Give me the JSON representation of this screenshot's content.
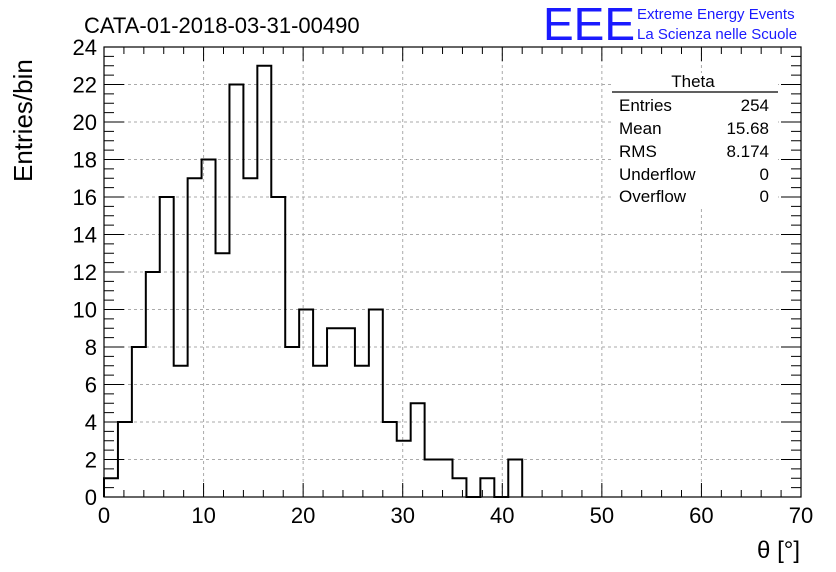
{
  "header": {
    "run_title": "CATA-01-2018-03-31-00490",
    "logo_text": "EEE",
    "logo_line1": "Extreme Energy Events",
    "logo_line2": "La Scienza nelle Scuole",
    "logo_color": "#1a1aff"
  },
  "chart_data": {
    "type": "histogram",
    "title": "CATA-01-2018-03-31-00490",
    "xlabel": "θ [°]",
    "ylabel": "Entries/bin",
    "xlim": [
      0,
      70
    ],
    "ylim": [
      0,
      24
    ],
    "xticks": [
      0,
      10,
      20,
      30,
      40,
      50,
      60,
      70
    ],
    "yticks": [
      0,
      2,
      4,
      6,
      8,
      10,
      12,
      14,
      16,
      18,
      20,
      22,
      24
    ],
    "grid": true,
    "bin_width": 1.4,
    "bin_edges_start": 0,
    "counts": [
      1,
      4,
      8,
      12,
      16,
      7,
      17,
      18,
      13,
      22,
      17,
      23,
      16,
      8,
      10,
      7,
      9,
      9,
      7,
      10,
      4,
      3,
      5,
      2,
      2,
      1,
      0,
      1,
      0,
      2
    ],
    "line_color": "#000000"
  },
  "stats_box": {
    "title": "Theta",
    "rows": [
      {
        "label": "Entries",
        "value": "254"
      },
      {
        "label": "Mean",
        "value": "15.68"
      },
      {
        "label": "RMS",
        "value": "8.174"
      },
      {
        "label": "Underflow",
        "value": "0"
      },
      {
        "label": "Overflow",
        "value": "0"
      }
    ]
  }
}
